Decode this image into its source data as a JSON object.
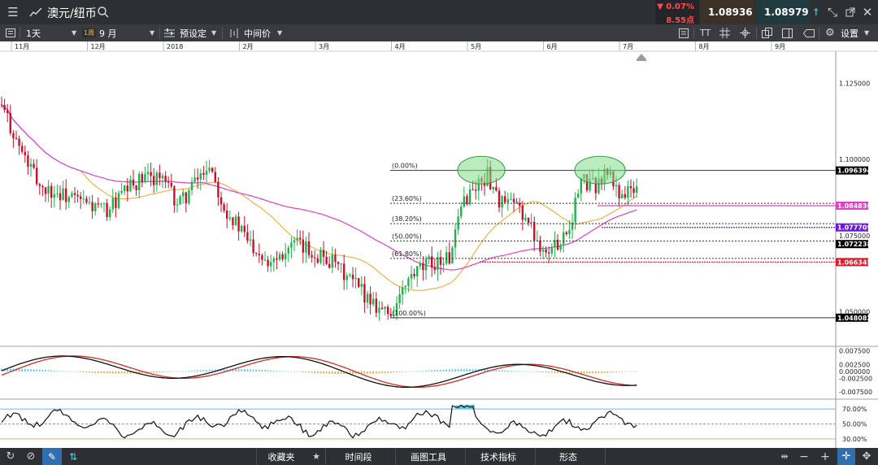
{
  "header": {
    "symbol": "澳元/纽币",
    "change_pct": "▼ 0.07%",
    "change_pts": "8.55点",
    "bid": "1.08936",
    "ask": "1.08979",
    "colors": {
      "down": "#ff4d4f",
      "bid_bg": "#3b3127",
      "ask_bg": "#1f3b3f",
      "bid_arrow": "#e88a2c",
      "ask_arrow": "#2fc6d6"
    }
  },
  "toolbar": {
    "timeframe": "1天",
    "badge": "1周",
    "range": "9 月",
    "preset": "预设定",
    "price_type": "中间价",
    "settings": "设置"
  },
  "bottom": {
    "favorites": "收藏夹",
    "period": "时间段",
    "drawing": "画图工具",
    "indicators": "技术指标",
    "patterns": "形态"
  },
  "chart_data": {
    "type": "candlestick",
    "x_labels": [
      "11月",
      "12月",
      "2018",
      "2月",
      "3月",
      "4月",
      "5月",
      "6月",
      "7月",
      "8月",
      "9月"
    ],
    "price_axis": {
      "ticks": [
        "1.125000",
        "1.100000",
        "1.075000",
        "1.050000"
      ],
      "tick_values": [
        1.125,
        1.1,
        1.075,
        1.05
      ],
      "ylim": [
        1.0395,
        1.1355
      ]
    },
    "price_labels": [
      {
        "text": "1.096394",
        "value": 1.096394,
        "color": "#000000"
      },
      {
        "text": "1.084836",
        "value": 1.084836,
        "color": "#e040c8"
      },
      {
        "text": "1.077709",
        "value": 1.077709,
        "color": "#6a1bd8"
      },
      {
        "text": "1.072238",
        "value": 1.072238,
        "color": "#000000"
      },
      {
        "text": "1.066345",
        "value": 1.066345,
        "color": "#e11b2b"
      },
      {
        "text": "1.048082",
        "value": 1.048082,
        "color": "#000000"
      }
    ],
    "fibonacci": [
      {
        "label": "(0.00%)",
        "value": 1.096394
      },
      {
        "label": "(23.60%)",
        "value": 1.085614
      },
      {
        "label": "(38.20%)",
        "value": 1.078947
      },
      {
        "label": "(50.00%)",
        "value": 1.073238
      },
      {
        "label": "(61.80%)",
        "value": 1.067529
      },
      {
        "label": "(100.00%)",
        "value": 1.048082
      }
    ],
    "macd_axis": {
      "ticks": [
        "0.007500",
        "0.002500",
        "0.000000",
        "-0.002500",
        "-0.007500"
      ],
      "tick_values": [
        0.0075,
        0.0025,
        0.0,
        -0.0025,
        -0.0075
      ]
    },
    "rsi_axis": {
      "ticks": [
        "70.00%",
        "50.00%",
        "30.00%"
      ],
      "tick_values": [
        70,
        50,
        30
      ]
    },
    "colors": {
      "up": "#1fb34a",
      "down": "#c8102e",
      "ma_fast": "#e9b54a",
      "ma_slow": "#e040c8",
      "rsi_band": "#4fc3e8"
    }
  }
}
